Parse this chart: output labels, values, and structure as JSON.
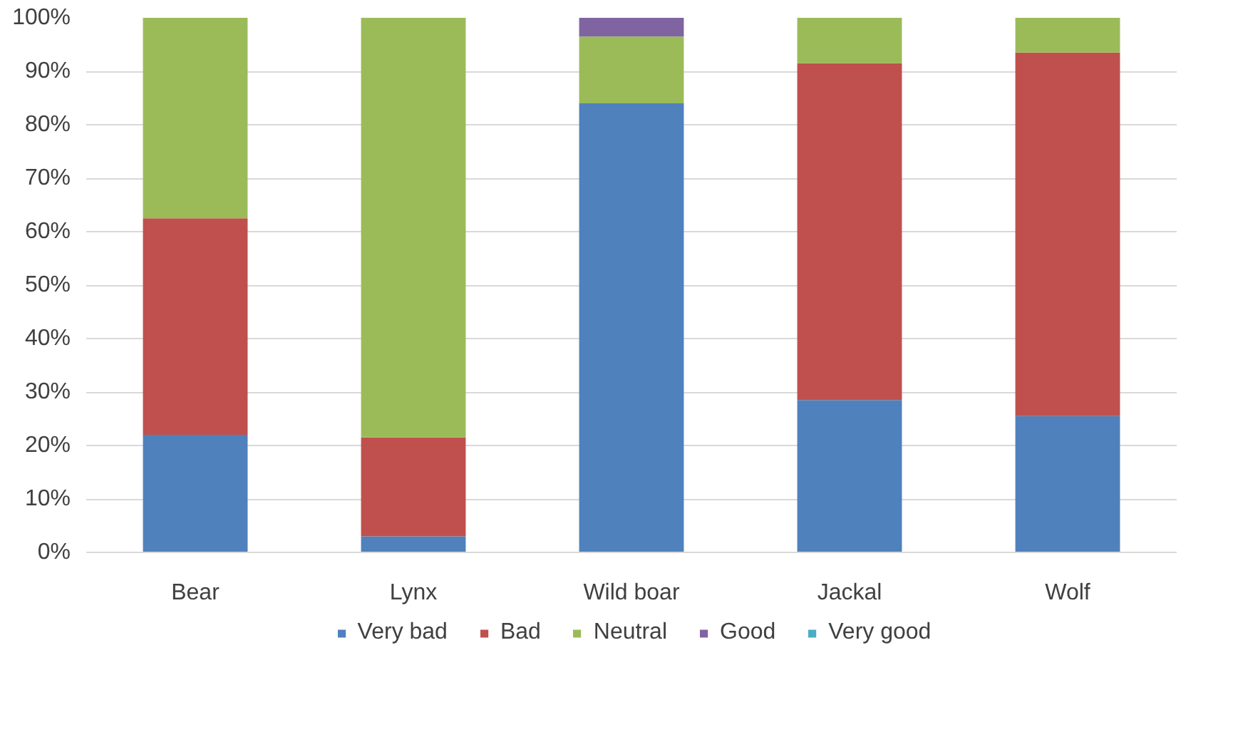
{
  "chart_data": {
    "type": "bar",
    "stacked": true,
    "categories": [
      "Bear",
      "Lynx",
      "Wild boar",
      "Jackal",
      "Wolf"
    ],
    "series": [
      {
        "name": "Very bad",
        "color": "#4f81bd",
        "values": [
          22,
          3,
          84,
          28.5,
          25.5
        ]
      },
      {
        "name": "Bad",
        "color": "#c0504d",
        "values": [
          40.5,
          18.5,
          0,
          63,
          68
        ]
      },
      {
        "name": "Neutral",
        "color": "#9bbb59",
        "values": [
          37.5,
          78.5,
          12.5,
          8.5,
          6.5
        ]
      },
      {
        "name": "Good",
        "color": "#8064a2",
        "values": [
          0,
          0,
          3.5,
          0,
          0
        ]
      },
      {
        "name": "Very good",
        "color": "#4bacc6",
        "values": [
          0,
          0,
          0,
          0,
          0
        ]
      }
    ],
    "ylim": [
      0,
      100
    ],
    "yticks": [
      {
        "value": 0,
        "label": "0%"
      },
      {
        "value": 10,
        "label": "10%"
      },
      {
        "value": 20,
        "label": "20%"
      },
      {
        "value": 30,
        "label": "30%"
      },
      {
        "value": 40,
        "label": "40%"
      },
      {
        "value": 50,
        "label": "50%"
      },
      {
        "value": 60,
        "label": "60%"
      },
      {
        "value": 70,
        "label": "70%"
      },
      {
        "value": 80,
        "label": "80%"
      },
      {
        "value": 90,
        "label": "90%"
      },
      {
        "value": 100,
        "label": "100%"
      }
    ],
    "grid": "y",
    "legend": "bottom"
  }
}
